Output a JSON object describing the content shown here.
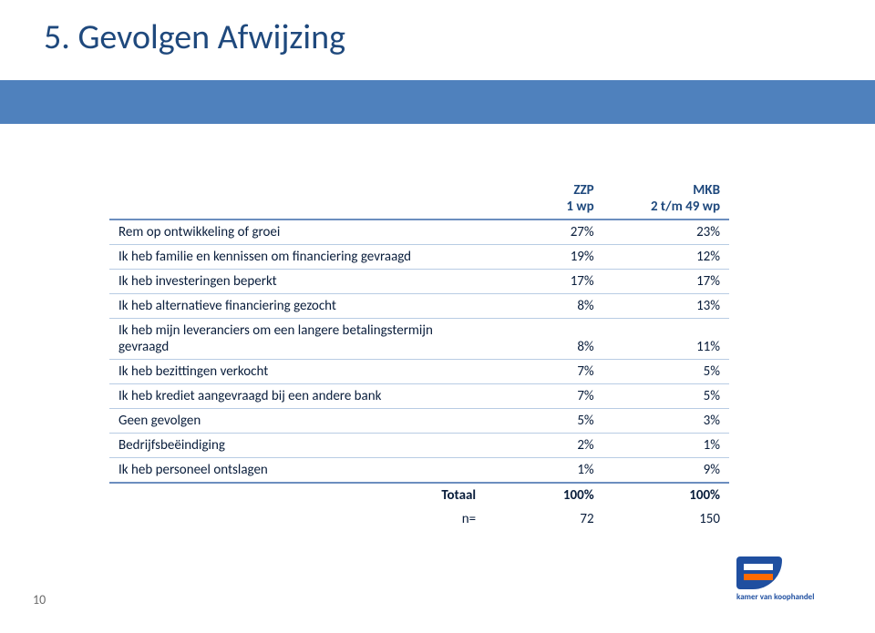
{
  "title": "5. Gevolgen Afwijzing",
  "pageNumber": "10",
  "logoText": "kamer van koophandel",
  "table": {
    "headers": {
      "blank": "",
      "col1_line1": "ZZP",
      "col1_line2": "1 wp",
      "col2_line1": "MKB",
      "col2_line2": "2 t/m 49 wp"
    },
    "rows": [
      {
        "label": "Rem op ontwikkeling of groei",
        "c1": "27%",
        "c2": "23%"
      },
      {
        "label": "Ik heb familie en kennissen om financiering gevraagd",
        "c1": "19%",
        "c2": "12%"
      },
      {
        "label": "Ik heb investeringen beperkt",
        "c1": "17%",
        "c2": "17%"
      },
      {
        "label": "Ik heb alternatieve financiering gezocht",
        "c1": "8%",
        "c2": "13%"
      },
      {
        "label": "Ik heb mijn leveranciers om een langere betalingstermijn gevraagd",
        "c1": "8%",
        "c2": "11%"
      },
      {
        "label": "Ik heb bezittingen verkocht",
        "c1": "7%",
        "c2": "5%"
      },
      {
        "label": "Ik heb krediet aangevraagd bij een andere bank",
        "c1": "7%",
        "c2": "5%"
      },
      {
        "label": "Geen gevolgen",
        "c1": "5%",
        "c2": "3%"
      },
      {
        "label": "Bedrijfsbeëindiging",
        "c1": "2%",
        "c2": "1%"
      },
      {
        "label": "Ik heb personeel ontslagen",
        "c1": "1%",
        "c2": "9%"
      }
    ],
    "total": {
      "label": "Totaal",
      "c1": "100%",
      "c2": "100%"
    },
    "nrow": {
      "label": "n=",
      "c1": "72",
      "c2": "150"
    }
  },
  "style": {
    "titleColor": "#1f497d",
    "barColor": "#4f81bd",
    "ruleColor": "#6c8ebf",
    "rowLineColor": "#b8cce4",
    "textColor": "#0a1e3c",
    "pageColor": "#6c6c6c",
    "background": "#ffffff",
    "titleFontSize": 38,
    "tableFontSize": 15
  }
}
